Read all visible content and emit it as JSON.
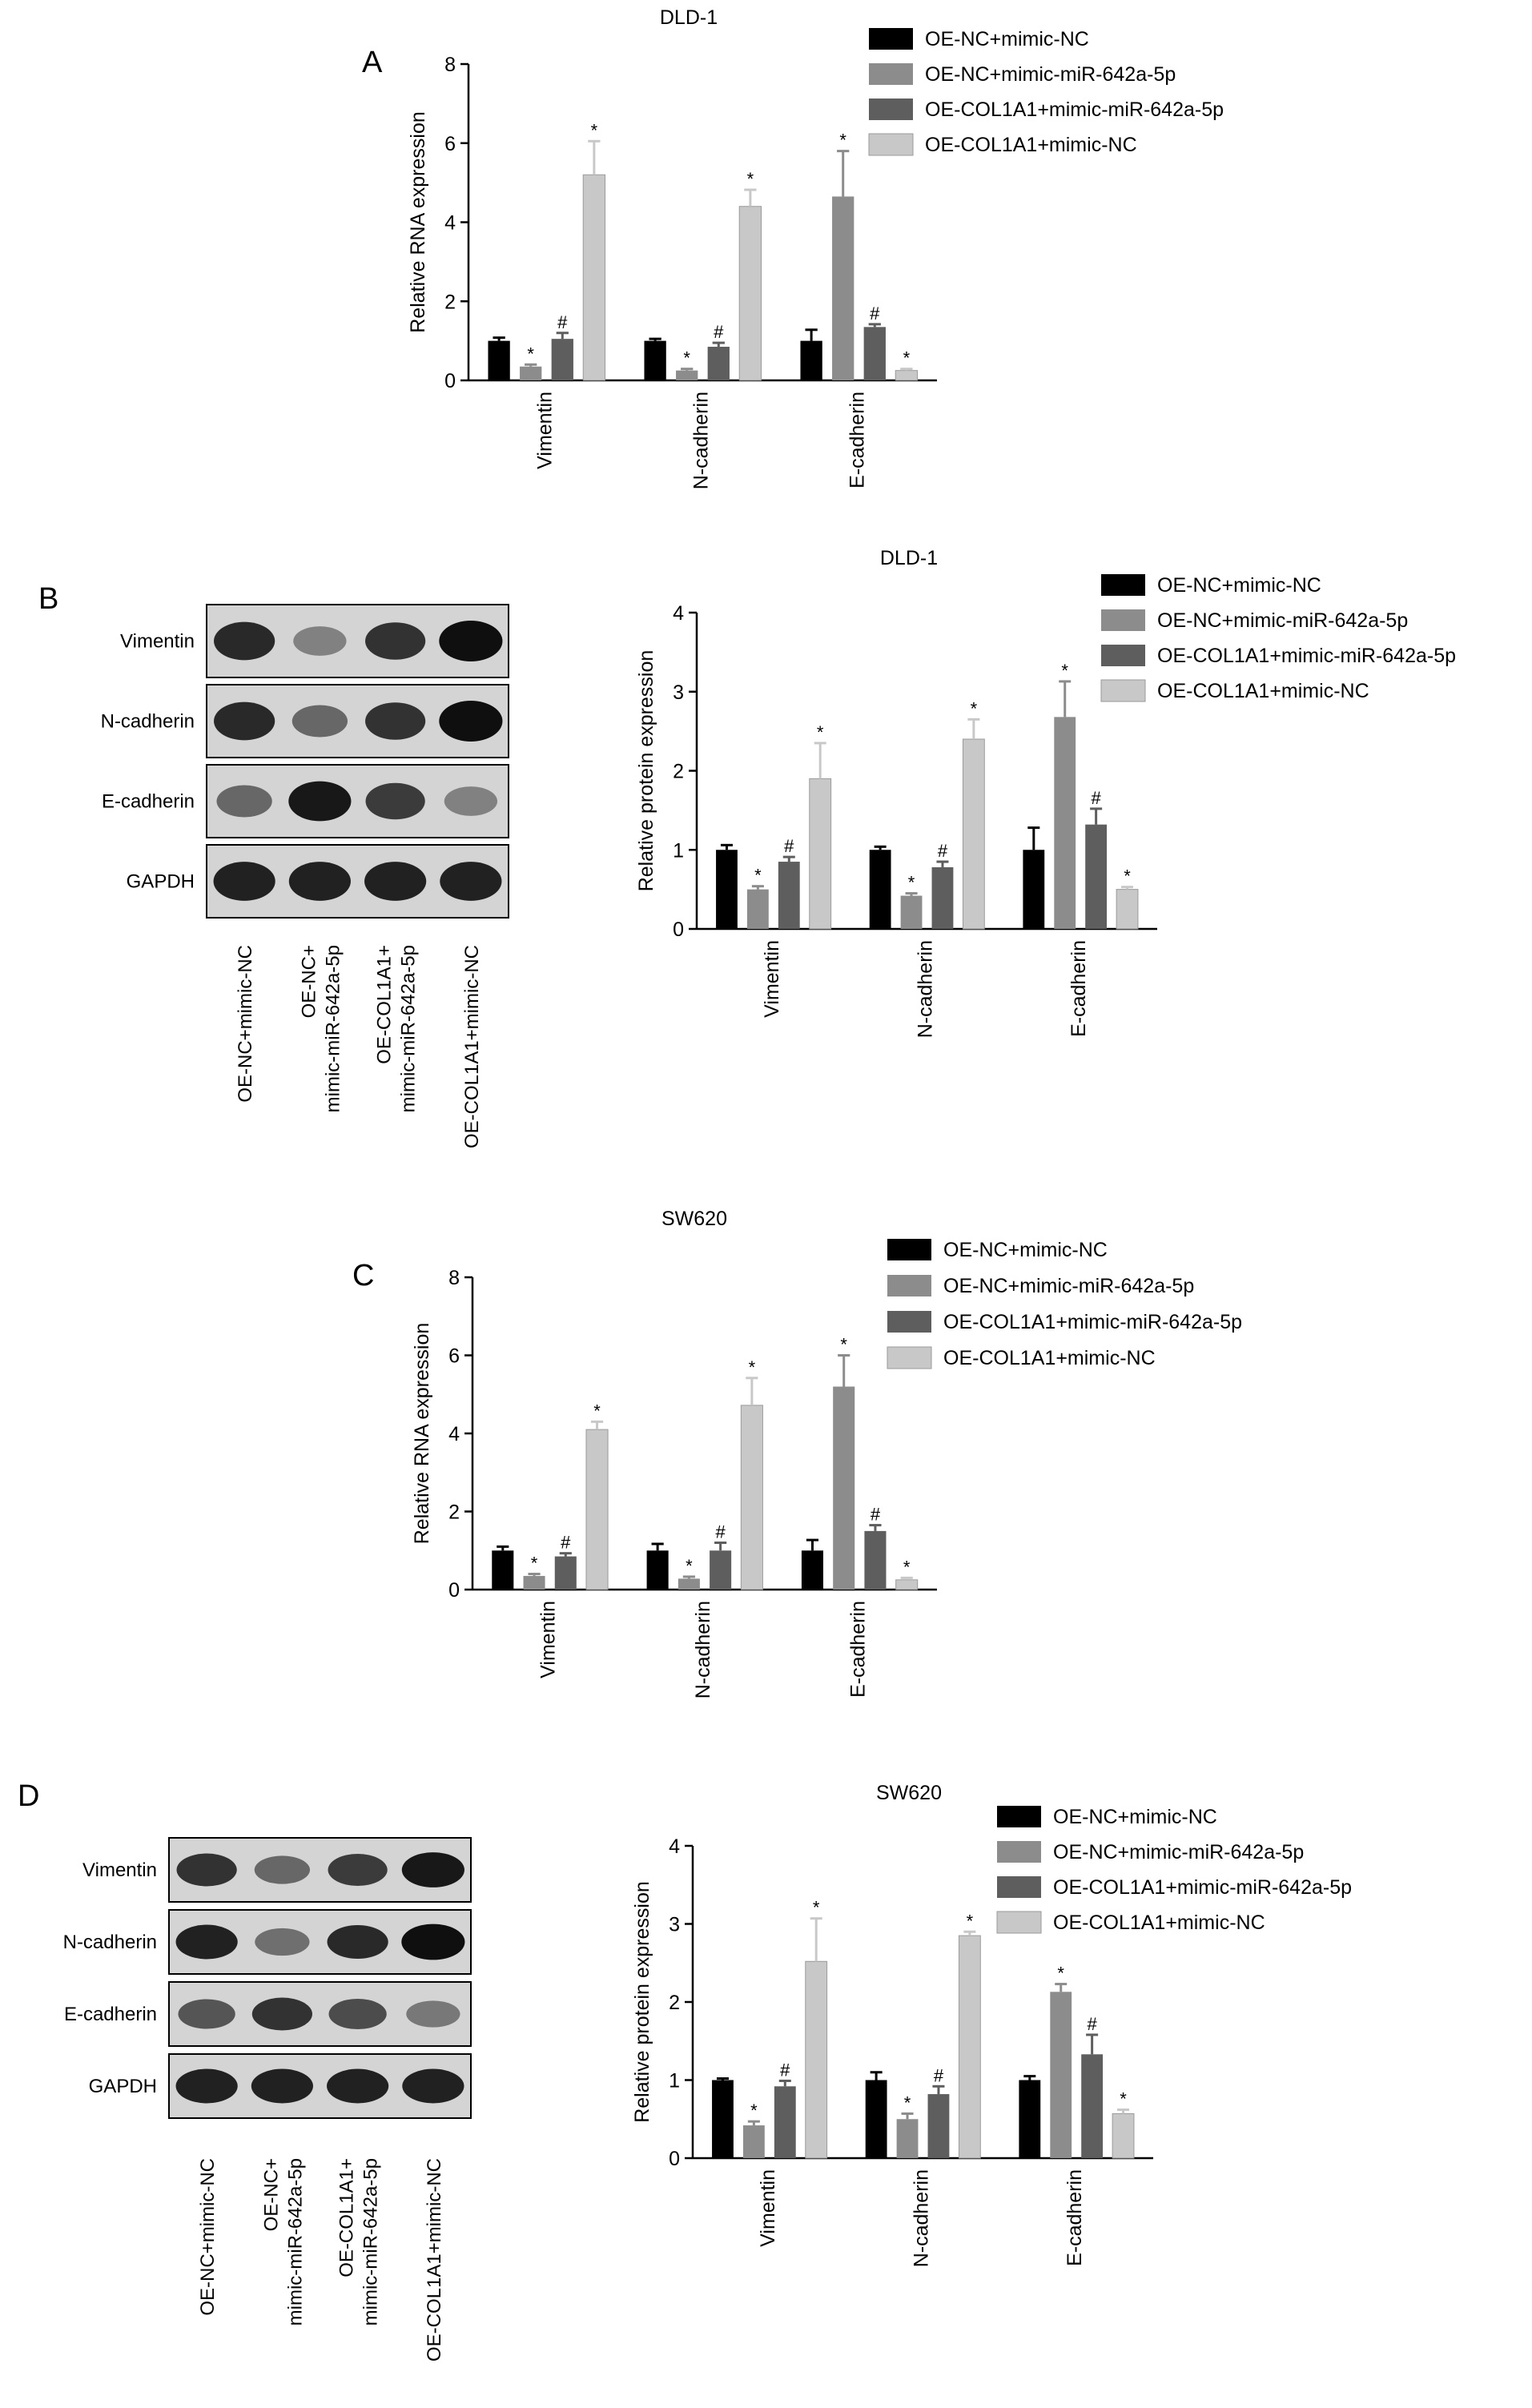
{
  "colors": {
    "OE-NC+mimic-NC": "#000000",
    "OE-NC+mimic-miR-642a-5p": "#8c8c8c",
    "OE-COL1A1+mimic-miR-642a-5p": "#5e5e5e",
    "OE-COL1A1+mimic-NC": "#c8c8c8"
  },
  "markers": {
    "star": "*",
    "hash": "#"
  },
  "panels": [
    {
      "id": "A",
      "letter": "A"
    },
    {
      "id": "B",
      "letter": "B"
    },
    {
      "id": "C",
      "letter": "C"
    },
    {
      "id": "D",
      "letter": "D"
    }
  ],
  "blots": [
    {
      "panel": "B",
      "rows": [
        "Vimentin",
        "N-cadherin",
        "E-cadherin",
        "GAPDH"
      ],
      "lanes": [
        "OE-NC+mimic-NC",
        "OE-NC+\nmimic-miR-642a-5p",
        "OE-COL1A1+\nmimic-miR-642a-5p",
        "OE-COL1A1+mimic-NC"
      ],
      "intensity": [
        [
          0.85,
          0.35,
          0.8,
          1.0
        ],
        [
          0.85,
          0.5,
          0.8,
          1.0
        ],
        [
          0.5,
          0.95,
          0.75,
          0.35
        ],
        [
          0.9,
          0.9,
          0.9,
          0.9
        ]
      ]
    },
    {
      "panel": "D",
      "rows": [
        "Vimentin",
        "N-cadherin",
        "E-cadherin",
        "GAPDH"
      ],
      "lanes": [
        "OE-NC+mimic-NC",
        "OE-NC+\nmimic-miR-642a-5p",
        "OE-COL1A1+\nmimic-miR-642a-5p",
        "OE-COL1A1+mimic-NC"
      ],
      "intensity": [
        [
          0.8,
          0.5,
          0.75,
          0.95
        ],
        [
          0.9,
          0.45,
          0.85,
          1.0
        ],
        [
          0.6,
          0.8,
          0.65,
          0.4
        ],
        [
          0.9,
          0.9,
          0.9,
          0.9
        ]
      ]
    }
  ],
  "chart_data": [
    {
      "panel": "A",
      "type": "bar",
      "title": "DLD-1",
      "ylabel": "Relative RNA expression",
      "xlabel": "",
      "ylim": [
        0,
        8
      ],
      "yticks": [
        0,
        2,
        4,
        6,
        8
      ],
      "categories": [
        "Vimentin",
        "N-cadherin",
        "E-cadherin"
      ],
      "legend_position": "top-right",
      "series": [
        {
          "name": "OE-NC+mimic-NC",
          "values": [
            1.0,
            1.0,
            1.0
          ],
          "errors": [
            0.08,
            0.05,
            0.28
          ],
          "marks": [
            "",
            "",
            ""
          ]
        },
        {
          "name": "OE-NC+mimic-miR-642a-5p",
          "values": [
            0.35,
            0.25,
            4.65
          ],
          "errors": [
            0.05,
            0.04,
            1.15
          ],
          "marks": [
            "*",
            "*",
            "*"
          ]
        },
        {
          "name": "OE-COL1A1+mimic-miR-642a-5p",
          "values": [
            1.05,
            0.85,
            1.35
          ],
          "errors": [
            0.15,
            0.1,
            0.07
          ],
          "marks": [
            "#",
            "#",
            "#"
          ]
        },
        {
          "name": "OE-COL1A1+mimic-NC",
          "values": [
            5.2,
            4.4,
            0.25
          ],
          "errors": [
            0.85,
            0.42,
            0.04
          ],
          "marks": [
            "*",
            "*",
            "*"
          ]
        }
      ]
    },
    {
      "panel": "B",
      "type": "bar",
      "title": "DLD-1",
      "ylabel": "Relative protein expression",
      "xlabel": "",
      "ylim": [
        0,
        4
      ],
      "yticks": [
        0,
        1,
        2,
        3,
        4
      ],
      "categories": [
        "Vimentin",
        "N-cadherin",
        "E-cadherin"
      ],
      "legend_position": "top-right",
      "series": [
        {
          "name": "OE-NC+mimic-NC",
          "values": [
            1.0,
            1.0,
            1.0
          ],
          "errors": [
            0.06,
            0.04,
            0.28
          ],
          "marks": [
            "",
            "",
            ""
          ]
        },
        {
          "name": "OE-NC+mimic-miR-642a-5p",
          "values": [
            0.5,
            0.42,
            2.68
          ],
          "errors": [
            0.04,
            0.03,
            0.45
          ],
          "marks": [
            "*",
            "*",
            "*"
          ]
        },
        {
          "name": "OE-COL1A1+mimic-miR-642a-5p",
          "values": [
            0.85,
            0.78,
            1.32
          ],
          "errors": [
            0.06,
            0.07,
            0.2
          ],
          "marks": [
            "#",
            "#",
            "#"
          ]
        },
        {
          "name": "OE-COL1A1+mimic-NC",
          "values": [
            1.9,
            2.4,
            0.5
          ],
          "errors": [
            0.45,
            0.25,
            0.03
          ],
          "marks": [
            "*",
            "*",
            "*"
          ]
        }
      ]
    },
    {
      "panel": "C",
      "type": "bar",
      "title": "SW620",
      "ylabel": "Relative RNA expression",
      "xlabel": "",
      "ylim": [
        0,
        8
      ],
      "yticks": [
        0,
        2,
        4,
        6,
        8
      ],
      "categories": [
        "Vimentin",
        "N-cadherin",
        "E-cadherin"
      ],
      "legend_position": "top-right",
      "series": [
        {
          "name": "OE-NC+mimic-NC",
          "values": [
            1.0,
            1.0,
            1.0
          ],
          "errors": [
            0.1,
            0.17,
            0.27
          ],
          "marks": [
            "",
            "",
            ""
          ]
        },
        {
          "name": "OE-NC+mimic-miR-642a-5p",
          "values": [
            0.35,
            0.28,
            5.2
          ],
          "errors": [
            0.05,
            0.05,
            0.8
          ],
          "marks": [
            "*",
            "*",
            "*"
          ]
        },
        {
          "name": "OE-COL1A1+mimic-miR-642a-5p",
          "values": [
            0.85,
            1.0,
            1.5
          ],
          "errors": [
            0.08,
            0.2,
            0.15
          ],
          "marks": [
            "#",
            "#",
            "#"
          ]
        },
        {
          "name": "OE-COL1A1+mimic-NC",
          "values": [
            4.1,
            4.72,
            0.25
          ],
          "errors": [
            0.2,
            0.7,
            0.05
          ],
          "marks": [
            "*",
            "*",
            "*"
          ]
        }
      ]
    },
    {
      "panel": "D",
      "type": "bar",
      "title": "SW620",
      "ylabel": "Relative protein expression",
      "xlabel": "",
      "ylim": [
        0,
        4
      ],
      "yticks": [
        0,
        1,
        2,
        3,
        4
      ],
      "categories": [
        "Vimentin",
        "N-cadherin",
        "E-cadherin"
      ],
      "legend_position": "top-right",
      "series": [
        {
          "name": "OE-NC+mimic-NC",
          "values": [
            1.0,
            1.0,
            1.0
          ],
          "errors": [
            0.02,
            0.1,
            0.05
          ],
          "marks": [
            "",
            "",
            ""
          ]
        },
        {
          "name": "OE-NC+mimic-miR-642a-5p",
          "values": [
            0.42,
            0.5,
            2.13
          ],
          "errors": [
            0.05,
            0.07,
            0.1
          ],
          "marks": [
            "*",
            "*",
            "*"
          ]
        },
        {
          "name": "OE-COL1A1+mimic-miR-642a-5p",
          "values": [
            0.92,
            0.82,
            1.33
          ],
          "errors": [
            0.07,
            0.1,
            0.25
          ],
          "marks": [
            "#",
            "#",
            "#"
          ]
        },
        {
          "name": "OE-COL1A1+mimic-NC",
          "values": [
            2.52,
            2.85,
            0.57
          ],
          "errors": [
            0.55,
            0.05,
            0.05
          ],
          "marks": [
            "*",
            "*",
            "*"
          ]
        }
      ]
    }
  ]
}
